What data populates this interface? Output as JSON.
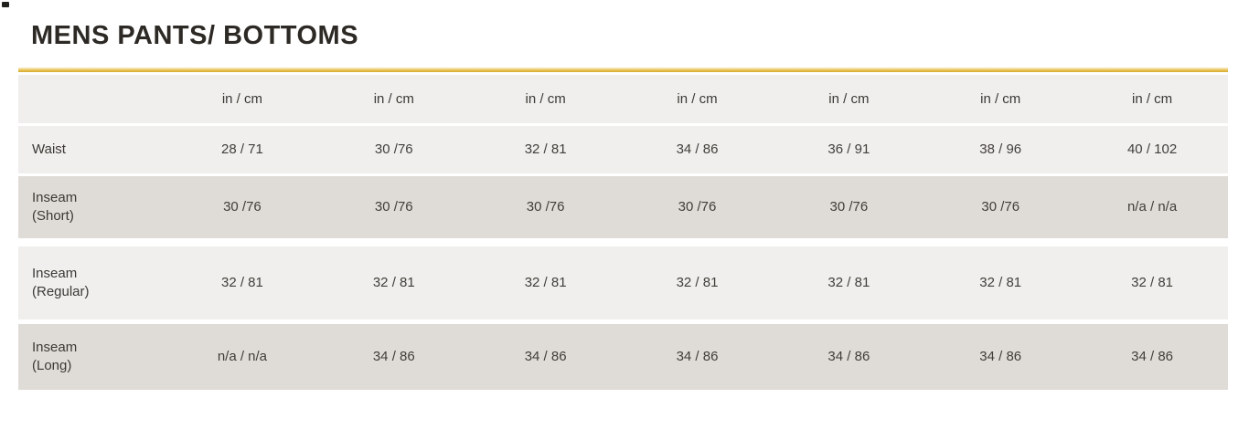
{
  "page": {
    "title": "MENS PANTS/ BOTTOMS"
  },
  "colors": {
    "accent_gold": "#E2B843",
    "row_light": "#F0EFED",
    "row_dark": "#DFDCD7",
    "text": "#3C3935"
  },
  "table": {
    "unit_header": [
      "in / cm",
      "in / cm",
      "in / cm",
      "in / cm",
      "in / cm",
      "in / cm",
      "in / cm"
    ],
    "rows": [
      {
        "label": "Waist",
        "values": [
          "28 / 71",
          "30 /76",
          "32 / 81",
          "34 / 86",
          "36 / 91",
          "38 / 96",
          "40 / 102"
        ]
      },
      {
        "label": "Inseam\n(Short)",
        "values": [
          "30 /76",
          "30 /76",
          "30 /76",
          "30 /76",
          "30 /76",
          "30 /76",
          "n/a / n/a"
        ]
      },
      {
        "label": "Inseam\n(Regular)",
        "values": [
          "32 / 81",
          "32 / 81",
          "32 / 81",
          "32 / 81",
          "32 / 81",
          "32 / 81",
          "32 / 81"
        ]
      },
      {
        "label": "Inseam\n(Long)",
        "values": [
          "n/a / n/a",
          "34 / 86",
          "34 / 86",
          "34 / 86",
          "34 / 86",
          "34 / 86",
          "34 / 86"
        ]
      }
    ]
  }
}
